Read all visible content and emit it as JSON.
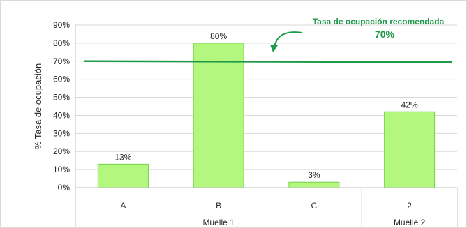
{
  "chart_data": {
    "type": "bar",
    "title": "",
    "xlabel": "",
    "ylabel": "% Tasa de ocupación",
    "ylim": [
      0,
      90
    ],
    "y_ticks": [
      "0%",
      "10%",
      "20%",
      "30%",
      "40%",
      "50%",
      "60%",
      "70%",
      "80%",
      "90%"
    ],
    "y_tick_values": [
      0,
      10,
      20,
      30,
      40,
      50,
      60,
      70,
      80,
      90
    ],
    "grid": true,
    "legend": "none",
    "categories": [
      "A",
      "B",
      "C",
      "2"
    ],
    "groups": [
      {
        "label": "Muelle 1",
        "categories": [
          "A",
          "B",
          "C"
        ]
      },
      {
        "label": "Muelle 2",
        "categories": [
          "2"
        ]
      }
    ],
    "values": [
      13,
      80,
      3,
      42
    ],
    "value_labels": [
      "13%",
      "80%",
      "3%",
      "42%"
    ],
    "reference_line": {
      "value": 70,
      "label": "Tasa de ocupación recomendada",
      "value_label": "70%"
    },
    "colors": {
      "bar_fill": "#b4f77e",
      "bar_stroke": "#6fd34a",
      "reference_line": "#1f9a4a",
      "annotation_text": "#1f9a4a",
      "grid": "#d9d9d9"
    }
  }
}
